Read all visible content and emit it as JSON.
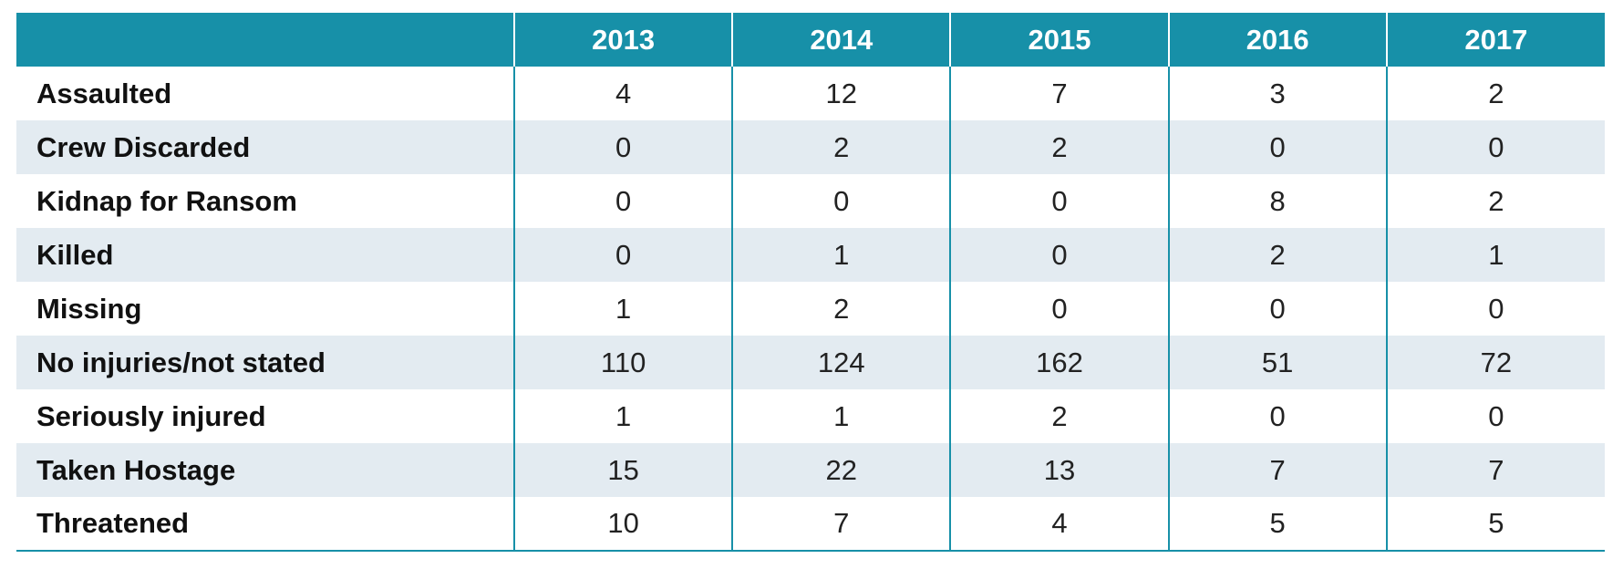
{
  "chart_data": {
    "type": "table",
    "colors": {
      "header_bg": "#1790a8",
      "header_text": "#ffffff",
      "stripe": "#e3ebf1"
    },
    "columns": [
      "",
      "2013",
      "2014",
      "2015",
      "2016",
      "2017"
    ],
    "rows": [
      {
        "label": "Assaulted",
        "values": [
          4,
          12,
          7,
          3,
          2
        ]
      },
      {
        "label": "Crew Discarded",
        "values": [
          0,
          2,
          2,
          0,
          0
        ]
      },
      {
        "label": "Kidnap for Ransom",
        "values": [
          0,
          0,
          0,
          8,
          2
        ]
      },
      {
        "label": "Killed",
        "values": [
          0,
          1,
          0,
          2,
          1
        ]
      },
      {
        "label": "Missing",
        "values": [
          1,
          2,
          0,
          0,
          0
        ]
      },
      {
        "label": "No injuries/not stated",
        "values": [
          110,
          124,
          162,
          51,
          72
        ]
      },
      {
        "label": "Seriously injured",
        "values": [
          1,
          1,
          2,
          0,
          0
        ]
      },
      {
        "label": "Taken Hostage",
        "values": [
          15,
          22,
          13,
          7,
          7
        ]
      },
      {
        "label": "Threatened",
        "values": [
          10,
          7,
          4,
          5,
          5
        ]
      }
    ]
  }
}
